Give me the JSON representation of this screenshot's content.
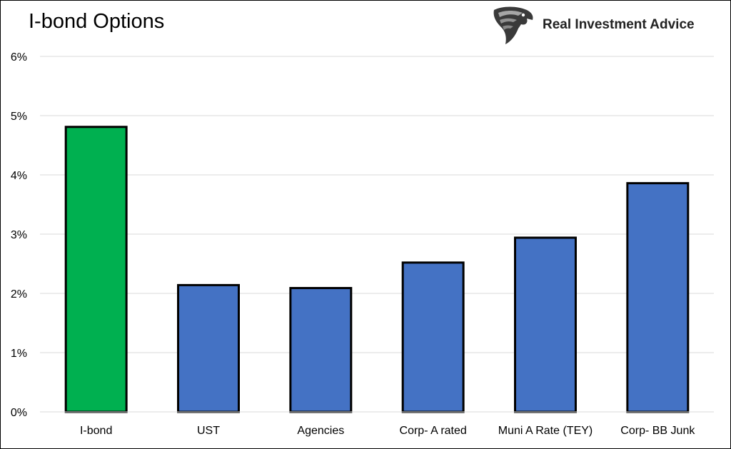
{
  "brand": {
    "name": "Real Investment Advice",
    "logo_icon": "eagle-head-icon"
  },
  "chart_data": {
    "type": "bar",
    "title": "I-bond Options",
    "xlabel": "",
    "ylabel": "",
    "categories": [
      "I-bond",
      "UST",
      "Agencies",
      "Corp- A rated",
      "Muni A Rate (TEY)",
      "Corp- BB Junk"
    ],
    "values": [
      4.81,
      2.14,
      2.09,
      2.52,
      2.94,
      3.86
    ],
    "colors": [
      "#00b050",
      "#4472c4",
      "#4472c4",
      "#4472c4",
      "#4472c4",
      "#4472c4"
    ],
    "ylim": [
      0,
      6
    ],
    "yticks": [
      0,
      1,
      2,
      3,
      4,
      5,
      6
    ],
    "ytick_labels": [
      "0%",
      "1%",
      "2%",
      "3%",
      "4%",
      "5%",
      "6%"
    ],
    "grid": true,
    "legend": "none"
  }
}
